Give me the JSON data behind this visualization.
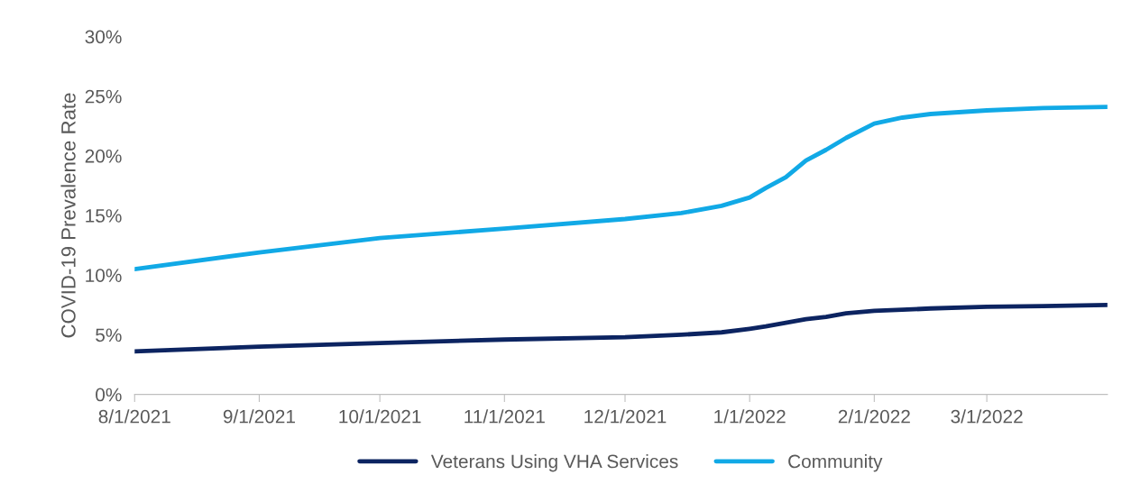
{
  "chart_data": {
    "type": "line",
    "ylabel": "COVID-19 Prevalence Rate",
    "x": [
      "2021-08-01",
      "2021-09-01",
      "2021-10-01",
      "2021-11-01",
      "2021-12-01",
      "2021-12-15",
      "2021-12-25",
      "2022-01-01",
      "2022-01-05",
      "2022-01-10",
      "2022-01-15",
      "2022-01-20",
      "2022-01-25",
      "2022-02-01",
      "2022-02-08",
      "2022-02-15",
      "2022-03-01",
      "2022-03-15",
      "2022-03-31"
    ],
    "series": [
      {
        "name": "Veterans Using VHA Services",
        "color": "#0c2461",
        "values": [
          3.6,
          4.0,
          4.3,
          4.6,
          4.8,
          5.0,
          5.2,
          5.5,
          5.7,
          6.0,
          6.3,
          6.5,
          6.8,
          7.0,
          7.1,
          7.2,
          7.35,
          7.4,
          7.5
        ]
      },
      {
        "name": "Community",
        "color": "#11a9e6",
        "values": [
          10.5,
          11.9,
          13.1,
          13.9,
          14.7,
          15.2,
          15.8,
          16.5,
          17.3,
          18.2,
          19.6,
          20.5,
          21.5,
          22.7,
          23.2,
          23.5,
          23.8,
          24.0,
          24.1
        ]
      }
    ],
    "xlim": [
      "2021-08-01",
      "2022-03-31"
    ],
    "xticks": [
      {
        "value": "2021-08-01",
        "label": "8/1/2021"
      },
      {
        "value": "2021-09-01",
        "label": "9/1/2021"
      },
      {
        "value": "2021-10-01",
        "label": "10/1/2021"
      },
      {
        "value": "2021-11-01",
        "label": "11/1/2021"
      },
      {
        "value": "2021-12-01",
        "label": "12/1/2021"
      },
      {
        "value": "2022-01-01",
        "label": "1/1/2022"
      },
      {
        "value": "2022-02-01",
        "label": "2/1/2022"
      },
      {
        "value": "2022-03-01",
        "label": "3/1/2022"
      }
    ],
    "ylim": [
      0,
      30
    ],
    "yticks": [
      {
        "value": 0,
        "label": "0%"
      },
      {
        "value": 5,
        "label": "5%"
      },
      {
        "value": 10,
        "label": "10%"
      },
      {
        "value": 15,
        "label": "15%"
      },
      {
        "value": 20,
        "label": "20%"
      },
      {
        "value": 25,
        "label": "25%"
      },
      {
        "value": 30,
        "label": "30%"
      }
    ],
    "grid": false,
    "legend": "bottom",
    "marker": "none",
    "line_style": "solid"
  }
}
